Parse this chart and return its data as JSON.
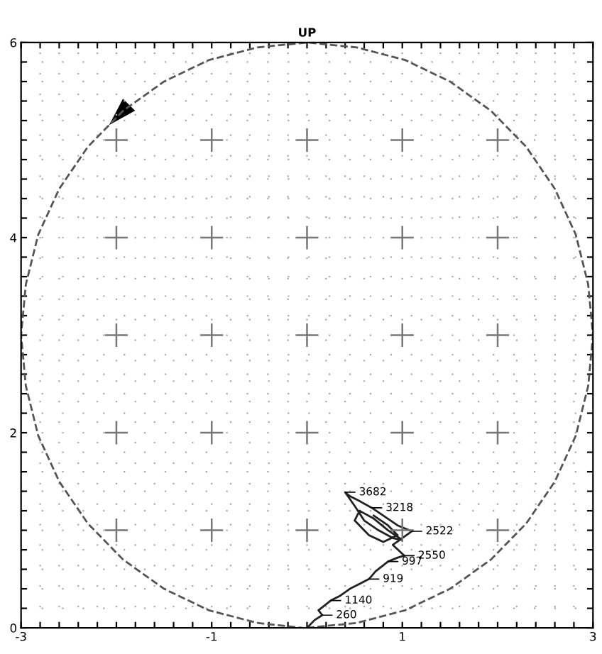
{
  "chart_data": {
    "type": "line",
    "title": "UP",
    "xlim": [
      -3,
      3
    ],
    "ylim": [
      0,
      6
    ],
    "xticks": [
      {
        "value": -3,
        "label": "-3"
      },
      {
        "value": -2.8,
        "label": null
      },
      {
        "value": -2.6,
        "label": null
      },
      {
        "value": -2.4,
        "label": null
      },
      {
        "value": -2.2,
        "label": null
      },
      {
        "value": -2,
        "label": null
      },
      {
        "value": -1.8,
        "label": null
      },
      {
        "value": -1.6,
        "label": null
      },
      {
        "value": -1.4,
        "label": null
      },
      {
        "value": -1.2,
        "label": null
      },
      {
        "value": -1,
        "label": "-1"
      },
      {
        "value": -0.8,
        "label": null
      },
      {
        "value": -0.6,
        "label": null
      },
      {
        "value": -0.4,
        "label": null
      },
      {
        "value": -0.2,
        "label": null
      },
      {
        "value": 0,
        "label": null
      },
      {
        "value": 0.2,
        "label": null
      },
      {
        "value": 0.4,
        "label": null
      },
      {
        "value": 0.6,
        "label": null
      },
      {
        "value": 0.8,
        "label": null
      },
      {
        "value": 1,
        "label": "1"
      },
      {
        "value": 1.2,
        "label": null
      },
      {
        "value": 1.4,
        "label": null
      },
      {
        "value": 1.6,
        "label": null
      },
      {
        "value": 1.8,
        "label": null
      },
      {
        "value": 2,
        "label": null
      },
      {
        "value": 2.2,
        "label": null
      },
      {
        "value": 2.4,
        "label": null
      },
      {
        "value": 2.6,
        "label": null
      },
      {
        "value": 2.8,
        "label": null
      },
      {
        "value": 3,
        "label": "3"
      }
    ],
    "yticks": [
      {
        "value": 0,
        "label": "0"
      },
      {
        "value": 0.2,
        "label": null
      },
      {
        "value": 0.4,
        "label": null
      },
      {
        "value": 0.6,
        "label": null
      },
      {
        "value": 0.8,
        "label": null
      },
      {
        "value": 1,
        "label": null
      },
      {
        "value": 1.2,
        "label": null
      },
      {
        "value": 1.4,
        "label": null
      },
      {
        "value": 1.6,
        "label": null
      },
      {
        "value": 1.8,
        "label": null
      },
      {
        "value": 2,
        "label": "2"
      },
      {
        "value": 2.2,
        "label": null
      },
      {
        "value": 2.4,
        "label": null
      },
      {
        "value": 2.6,
        "label": null
      },
      {
        "value": 2.8,
        "label": null
      },
      {
        "value": 3,
        "label": null
      },
      {
        "value": 3.2,
        "label": null
      },
      {
        "value": 3.4,
        "label": null
      },
      {
        "value": 3.6,
        "label": null
      },
      {
        "value": 3.8,
        "label": null
      },
      {
        "value": 4,
        "label": "4"
      },
      {
        "value": 4.2,
        "label": null
      },
      {
        "value": 4.4,
        "label": null
      },
      {
        "value": 4.6,
        "label": null
      },
      {
        "value": 4.8,
        "label": null
      },
      {
        "value": 5,
        "label": null
      },
      {
        "value": 5.2,
        "label": null
      },
      {
        "value": 5.4,
        "label": null
      },
      {
        "value": 5.6,
        "label": null
      },
      {
        "value": 5.8,
        "label": null
      },
      {
        "value": 6,
        "label": "6"
      }
    ],
    "grid": true,
    "series": [
      {
        "color": "#555555",
        "line_style": "dashed",
        "x": [
          0,
          0.52,
          1.03,
          1.5,
          1.93,
          2.3,
          2.6,
          2.82,
          2.95,
          3,
          2.95,
          2.82,
          2.6,
          2.3,
          1.93,
          1.5,
          1.03,
          0.52,
          0,
          -0.52,
          -1.03,
          -1.5,
          -1.93,
          -2.3,
          -2.6,
          -2.82,
          -2.95,
          -3,
          -2.95,
          -2.82,
          -2.6,
          -2.3,
          -1.93,
          -1.5,
          -1.03,
          -0.52,
          -0.05
        ],
        "values": [
          0,
          0.05,
          0.18,
          0.4,
          0.7,
          1.07,
          1.5,
          1.97,
          2.48,
          3,
          3.52,
          4.03,
          4.5,
          4.93,
          5.3,
          5.6,
          5.82,
          5.95,
          6,
          5.95,
          5.82,
          5.6,
          5.3,
          4.93,
          4.5,
          4.03,
          3.52,
          3,
          2.48,
          1.97,
          1.5,
          1.07,
          0.7,
          0.4,
          0.18,
          0.05,
          0
        ]
      },
      {
        "color": "#222222",
        "line_style": "solid",
        "x": [
          0.0,
          0.08,
          0.16,
          0.12,
          0.25,
          0.35,
          0.45,
          0.55,
          0.65,
          0.72,
          0.85,
          0.95,
          1.02,
          0.9,
          1.1,
          0.95,
          0.8,
          0.68,
          0.55,
          0.45,
          0.4,
          0.5,
          0.6,
          0.75,
          0.9,
          1.0,
          0.85,
          0.7,
          0.55,
          0.5,
          0.65,
          0.8,
          0.95,
          0.85,
          0.7
        ],
        "values": [
          0.0,
          0.08,
          0.13,
          0.18,
          0.28,
          0.33,
          0.4,
          0.45,
          0.5,
          0.58,
          0.68,
          0.72,
          0.74,
          0.85,
          0.99,
          1.05,
          1.15,
          1.23,
          1.3,
          1.35,
          1.39,
          1.25,
          1.1,
          1.0,
          0.92,
          0.9,
          1.0,
          1.12,
          1.2,
          1.1,
          0.95,
          0.88,
          0.95,
          1.05,
          1.15
        ]
      }
    ],
    "annotations": [
      {
        "text": "3682",
        "x": 0.4,
        "y": 1.39
      },
      {
        "text": "3218",
        "x": 0.68,
        "y": 1.23
      },
      {
        "text": "2522",
        "x": 1.1,
        "y": 0.99
      },
      {
        "text": "2550",
        "x": 1.02,
        "y": 0.74
      },
      {
        "text": "997",
        "x": 0.85,
        "y": 0.68
      },
      {
        "text": "919",
        "x": 0.65,
        "y": 0.5
      },
      {
        "text": "1140",
        "x": 0.25,
        "y": 0.28
      },
      {
        "text": "260",
        "x": 0.16,
        "y": 0.13
      }
    ]
  }
}
